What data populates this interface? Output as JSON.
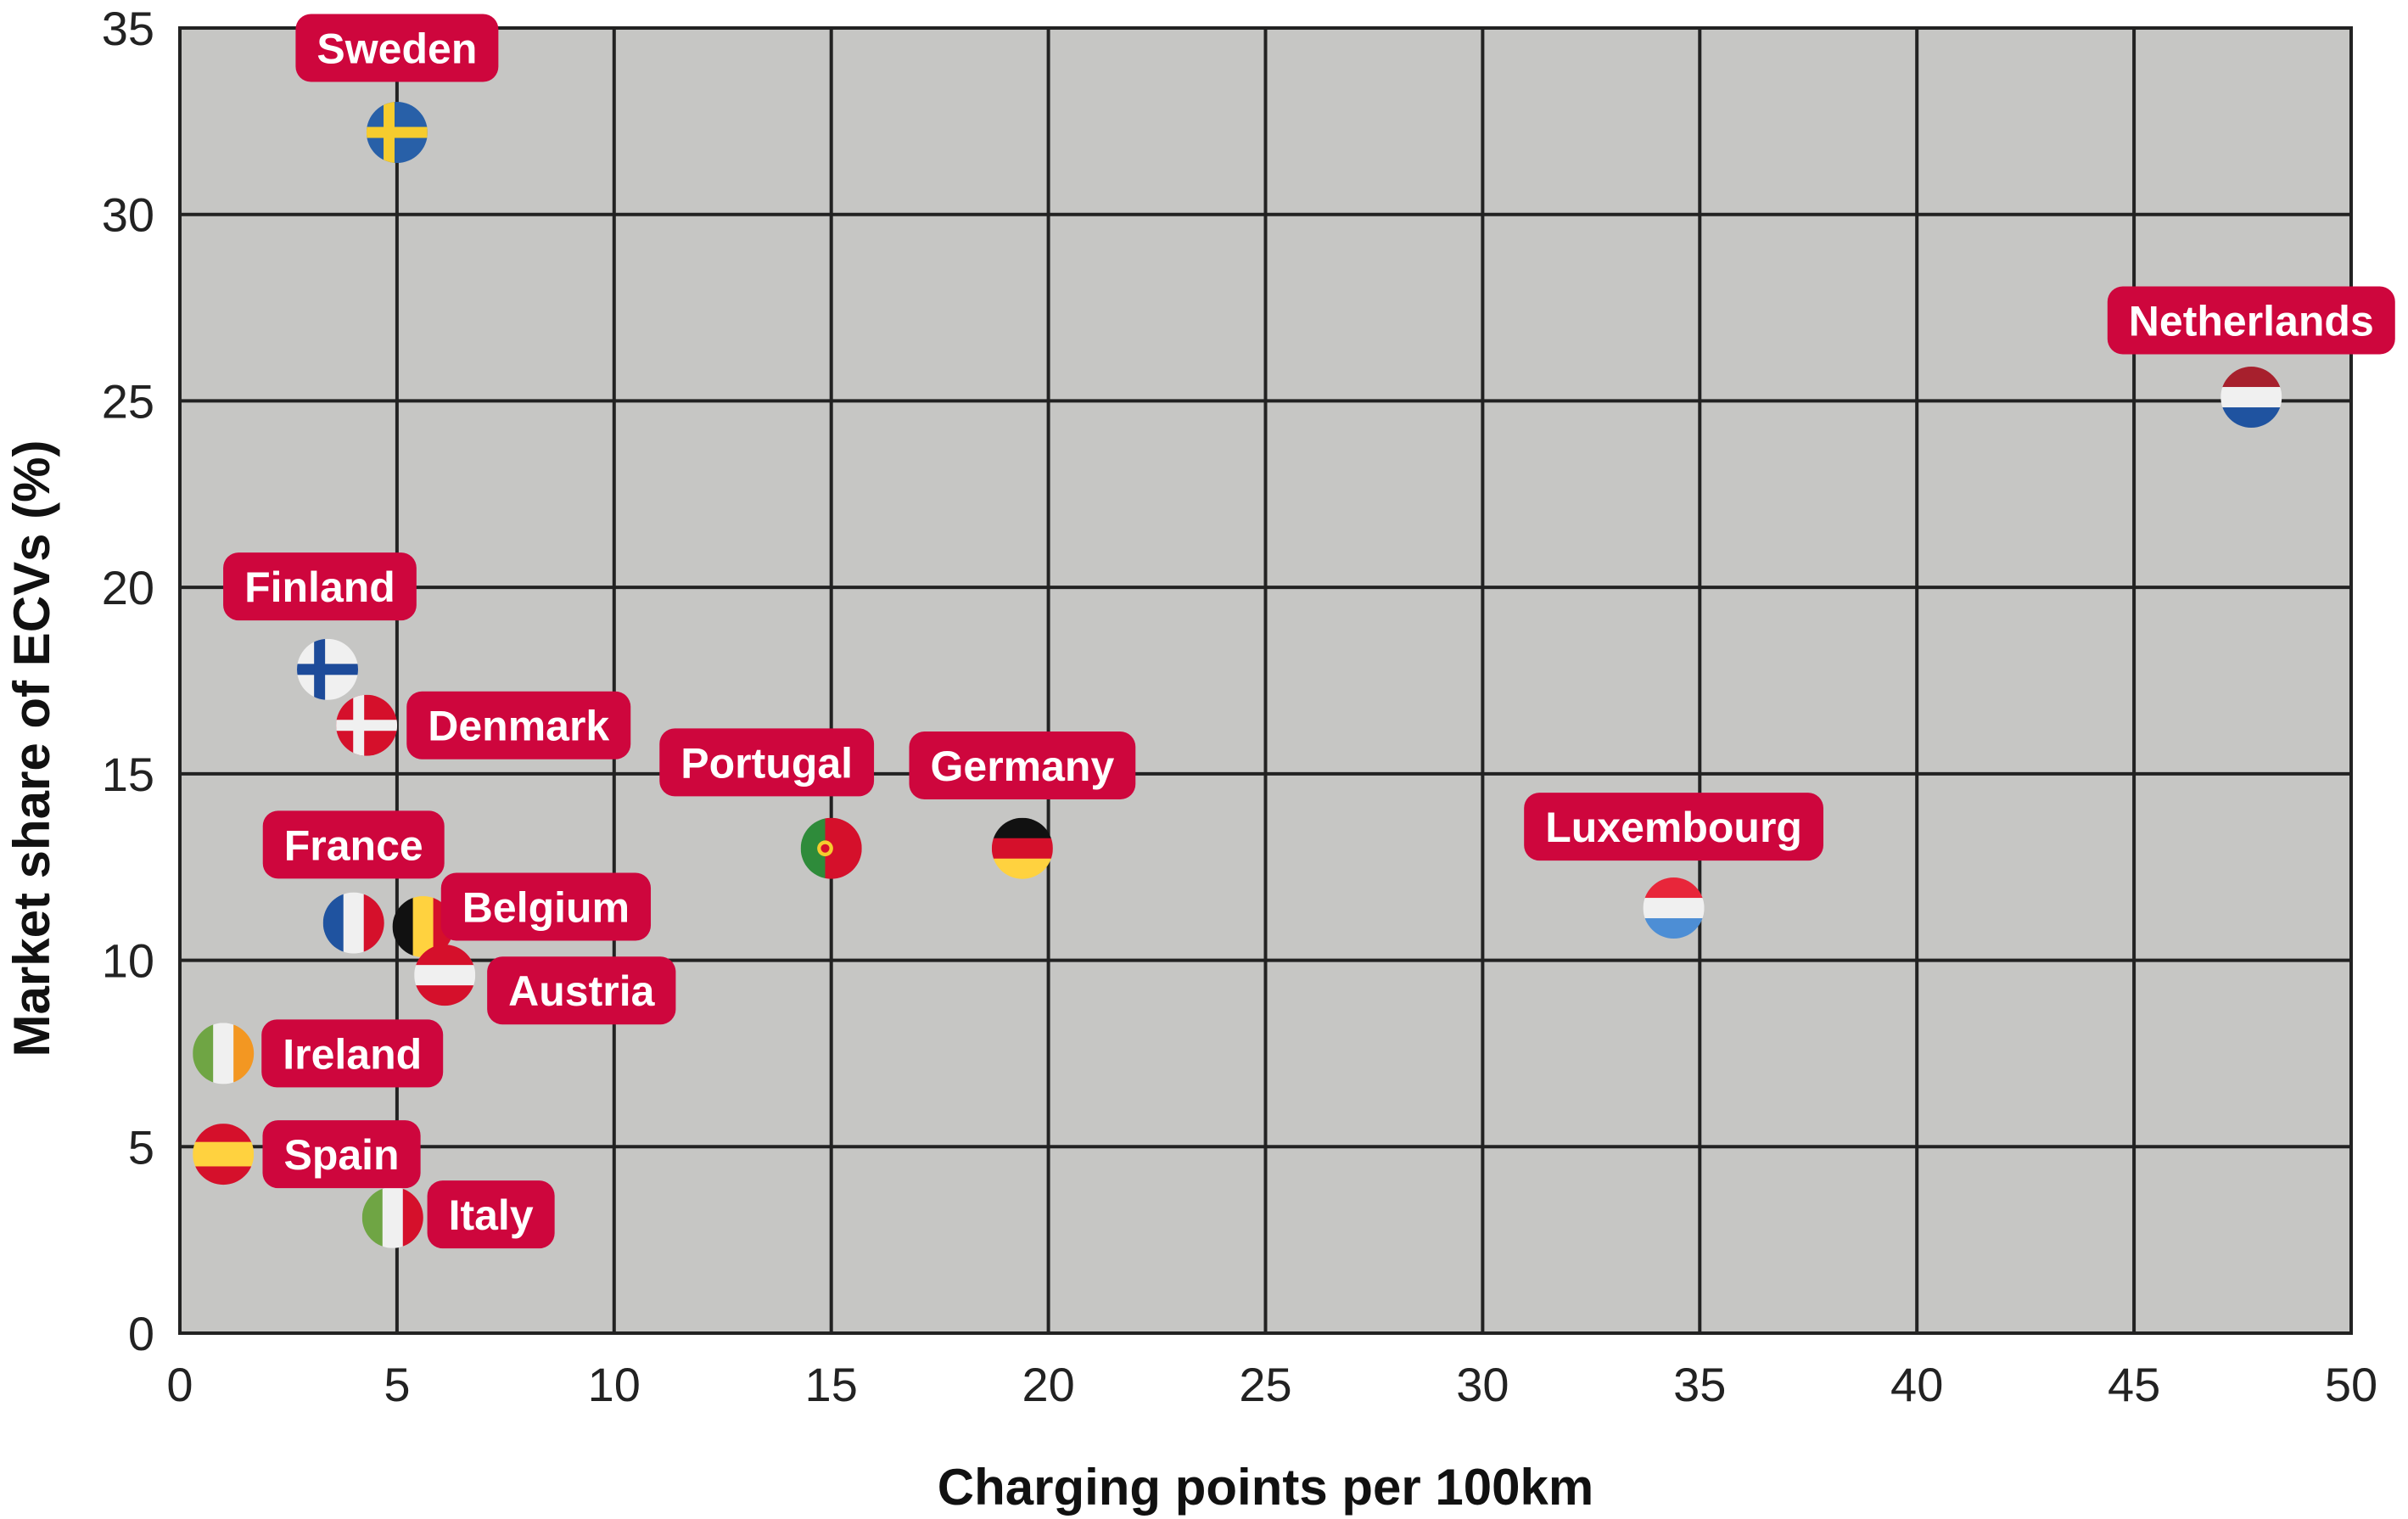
{
  "chart_data": {
    "type": "scatter",
    "title": "",
    "xlabel": "Charging points per 100km",
    "ylabel": "Market share of ECVs (%)",
    "xlim": [
      0,
      50
    ],
    "ylim": [
      0,
      35
    ],
    "xticks": [
      0,
      5,
      10,
      15,
      20,
      25,
      30,
      35,
      40,
      45,
      50
    ],
    "yticks": [
      0,
      5,
      10,
      15,
      20,
      25,
      30,
      35
    ],
    "grid": true,
    "colors": {
      "plot_bg": "#C6C6C4",
      "grid": "#222222",
      "label_bg": "#CE063D",
      "label_text": "#FFFFFF"
    },
    "points": [
      {
        "name": "Sweden",
        "x": 5.0,
        "y": 32.2,
        "flag": "sweden"
      },
      {
        "name": "Netherlands",
        "x": 47.7,
        "y": 25.1,
        "flag": "netherlands"
      },
      {
        "name": "Finland",
        "x": 3.4,
        "y": 17.8,
        "flag": "finland"
      },
      {
        "name": "Denmark",
        "x": 4.3,
        "y": 16.3,
        "flag": "denmark"
      },
      {
        "name": "Portugal",
        "x": 15.0,
        "y": 13.0,
        "flag": "portugal"
      },
      {
        "name": "Germany",
        "x": 19.4,
        "y": 13.0,
        "flag": "germany"
      },
      {
        "name": "Luxembourg",
        "x": 34.4,
        "y": 11.4,
        "flag": "luxembourg"
      },
      {
        "name": "France",
        "x": 4.0,
        "y": 11.0,
        "flag": "france"
      },
      {
        "name": "Belgium",
        "x": 5.6,
        "y": 10.9,
        "flag": "belgium"
      },
      {
        "name": "Austria",
        "x": 6.1,
        "y": 9.6,
        "flag": "austria"
      },
      {
        "name": "Ireland",
        "x": 1.0,
        "y": 7.5,
        "flag": "ireland"
      },
      {
        "name": "Spain",
        "x": 1.0,
        "y": 4.8,
        "flag": "spain"
      },
      {
        "name": "Italy",
        "x": 4.9,
        "y": 3.1,
        "flag": "italy"
      }
    ]
  }
}
